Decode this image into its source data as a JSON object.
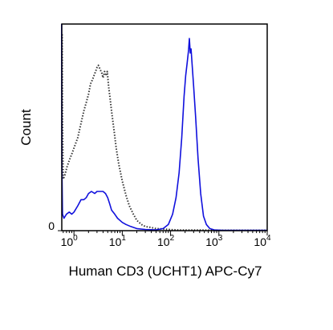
{
  "chart_data": {
    "type": "histogram-overlay",
    "xlabel": "Human CD3 (UCHT1) APC-Cy7",
    "ylabel": "Count",
    "x_scale": "log",
    "xlim": [
      0.56,
      10000
    ],
    "ylim": [
      0,
      100
    ],
    "x_ticks": [
      {
        "value": 1,
        "base": "10",
        "exp": "0"
      },
      {
        "value": 10,
        "base": "10",
        "exp": "1"
      },
      {
        "value": 100,
        "base": "10",
        "exp": "2"
      },
      {
        "value": 1000,
        "base": "10",
        "exp": "3"
      },
      {
        "value": 10000,
        "base": "10",
        "exp": "4"
      }
    ],
    "y_ticks": [
      {
        "value": 0,
        "label": "0"
      }
    ],
    "series": [
      {
        "style": "dotted",
        "color": "#333333",
        "points": [
          [
            0.57,
            95
          ],
          [
            0.58,
            55
          ],
          [
            0.6,
            25
          ],
          [
            0.65,
            27
          ],
          [
            0.72,
            31
          ],
          [
            0.8,
            34
          ],
          [
            0.9,
            37
          ],
          [
            1.0,
            40
          ],
          [
            1.2,
            45
          ],
          [
            1.4,
            52
          ],
          [
            1.6,
            58
          ],
          [
            1.8,
            62
          ],
          [
            2.0,
            66
          ],
          [
            2.2,
            71
          ],
          [
            2.4,
            73
          ],
          [
            2.6,
            75
          ],
          [
            2.8,
            77
          ],
          [
            3.0,
            79
          ],
          [
            3.2,
            80
          ],
          [
            3.5,
            78
          ],
          [
            3.8,
            76
          ],
          [
            4.0,
            74
          ],
          [
            4.3,
            77
          ],
          [
            4.6,
            75
          ],
          [
            4.9,
            77
          ],
          [
            5.2,
            70
          ],
          [
            5.6,
            64
          ],
          [
            6.0,
            58
          ],
          [
            6.8,
            48
          ],
          [
            7.5,
            40
          ],
          [
            8.5,
            32
          ],
          [
            10,
            24
          ],
          [
            12,
            17
          ],
          [
            14,
            12
          ],
          [
            17,
            8
          ],
          [
            20,
            5
          ],
          [
            25,
            3
          ],
          [
            30,
            2
          ],
          [
            40,
            1.5
          ],
          [
            50,
            1
          ],
          [
            70,
            0.8
          ],
          [
            100,
            0.5
          ],
          [
            150,
            0.3
          ],
          [
            300,
            0.3
          ],
          [
            1000,
            0.2
          ],
          [
            10000,
            0.2
          ]
        ]
      },
      {
        "style": "solid",
        "color": "#1010dd",
        "points": [
          [
            0.555,
            100
          ],
          [
            0.565,
            30
          ],
          [
            0.58,
            8
          ],
          [
            0.62,
            6
          ],
          [
            0.7,
            8
          ],
          [
            0.8,
            9
          ],
          [
            0.9,
            8
          ],
          [
            1.0,
            9
          ],
          [
            1.2,
            12
          ],
          [
            1.4,
            15
          ],
          [
            1.6,
            15
          ],
          [
            1.8,
            16
          ],
          [
            2.0,
            18
          ],
          [
            2.3,
            19
          ],
          [
            2.7,
            18
          ],
          [
            3.0,
            19
          ],
          [
            3.5,
            19
          ],
          [
            4.0,
            19
          ],
          [
            4.5,
            18
          ],
          [
            5.0,
            16
          ],
          [
            5.5,
            13
          ],
          [
            6.0,
            10
          ],
          [
            7.0,
            8
          ],
          [
            8.0,
            6
          ],
          [
            10,
            4
          ],
          [
            12,
            3
          ],
          [
            15,
            2
          ],
          [
            20,
            1
          ],
          [
            30,
            0.6
          ],
          [
            50,
            0.4
          ],
          [
            70,
            1
          ],
          [
            90,
            3
          ],
          [
            110,
            8
          ],
          [
            130,
            16
          ],
          [
            150,
            28
          ],
          [
            170,
            45
          ],
          [
            190,
            65
          ],
          [
            205,
            75
          ],
          [
            220,
            81
          ],
          [
            235,
            87
          ],
          [
            245,
            93
          ],
          [
            255,
            86
          ],
          [
            265,
            88
          ],
          [
            280,
            80
          ],
          [
            300,
            70
          ],
          [
            330,
            55
          ],
          [
            370,
            35
          ],
          [
            420,
            18
          ],
          [
            480,
            7
          ],
          [
            550,
            3
          ],
          [
            650,
            1
          ],
          [
            800,
            0.4
          ],
          [
            1200,
            0.2
          ],
          [
            10000,
            0.2
          ]
        ]
      }
    ]
  }
}
